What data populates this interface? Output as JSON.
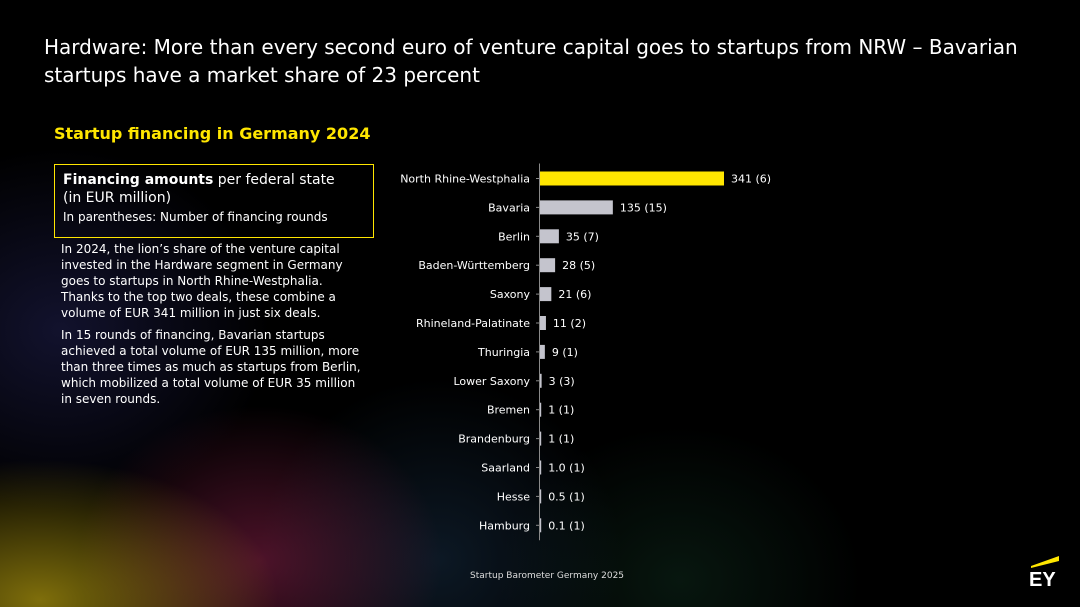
{
  "headline": "Hardware: More than every second euro of venture capital goes to startups from NRW – Bavarian startups have a market share of 23 percent",
  "subtitle": "Startup financing in Germany 2024",
  "legend": {
    "bold": "Financing amounts",
    "rest": " per federal state",
    "line2": "(in EUR million)",
    "line3": "In parentheses: Number of financing rounds"
  },
  "body": {
    "p1": "In 2024, the lion’s share of the venture capital invested in the Hardware segment in Germany goes to startups in North Rhine-Westphalia. Thanks to the top two deals, these combine a volume of EUR 341 million in just six deals.",
    "p2": "In 15 rounds of financing, Bavarian startups achieved a total volume of EUR 135 million, more than three times as much as startups from Berlin, which mobilized a total volume of EUR 35 million in seven rounds."
  },
  "footer": "Startup Barometer Germany 2025",
  "logo": "EY",
  "colors": {
    "highlight": "#ffe600",
    "bar": "#c4c4cd",
    "text": "#ffffff"
  },
  "chart_data": {
    "type": "bar",
    "orientation": "horizontal",
    "title": "",
    "xlabel": "",
    "ylabel": "",
    "xlim": [
      0,
      341
    ],
    "grid": false,
    "categories": [
      "North Rhine-Westphalia",
      "Bavaria",
      "Berlin",
      "Baden-Württemberg",
      "Saxony",
      "Rhineland-Palatinate",
      "Thuringia",
      "Lower Saxony",
      "Bremen",
      "Brandenburg",
      "Saarland",
      "Hesse",
      "Hamburg"
    ],
    "values": [
      341,
      135,
      35,
      28,
      21,
      11,
      9,
      3,
      1,
      1,
      1.0,
      0.5,
      0.1
    ],
    "rounds": [
      6,
      15,
      7,
      5,
      6,
      2,
      1,
      3,
      1,
      1,
      1,
      1,
      1
    ],
    "labels": [
      "341 (6)",
      "135 (15)",
      "35 (7)",
      "28 (5)",
      "21 (6)",
      "11 (2)",
      "9 (1)",
      "3 (3)",
      "1 (1)",
      "1 (1)",
      "1.0 (1)",
      "0.5 (1)",
      "0.1 (1)"
    ],
    "highlight_index": 0
  }
}
